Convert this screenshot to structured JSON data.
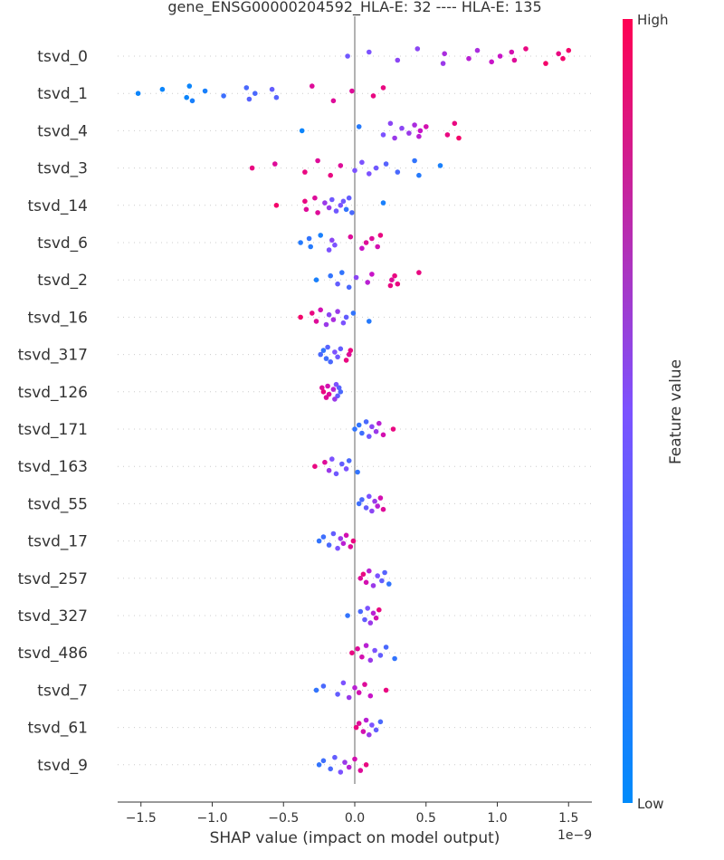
{
  "chart_data": {
    "type": "scatter",
    "title": "gene_ENSG00000204592_HLA-E: 32 ---- HLA-E: 135",
    "xlabel": "SHAP value (impact on model output)",
    "x_offset_label": "1e−9",
    "x_ticks": [
      -1.5,
      -1.0,
      -0.5,
      0.0,
      0.5,
      1.0,
      1.5
    ],
    "x_tick_labels": [
      "−1.5",
      "−1.0",
      "−0.5",
      "0.0",
      "0.5",
      "1.0",
      "1.5"
    ],
    "xlim": [
      -1.66,
      1.66
    ],
    "grid": false,
    "colorbar": {
      "label": "Feature value",
      "high_label": "High",
      "low_label": "Low",
      "low_color": "#008bfb",
      "high_color": "#ff0052"
    },
    "features": [
      {
        "name": "tsvd_0",
        "points": [
          [
            -0.05,
            0.45
          ],
          [
            0.1,
            0.5
          ],
          [
            0.3,
            0.55
          ],
          [
            0.44,
            0.55
          ],
          [
            0.62,
            0.6
          ],
          [
            0.63,
            0.65
          ],
          [
            0.8,
            0.7
          ],
          [
            0.86,
            0.65
          ],
          [
            0.96,
            0.75
          ],
          [
            1.02,
            0.75
          ],
          [
            1.1,
            0.8
          ],
          [
            1.12,
            0.85
          ],
          [
            1.2,
            0.9
          ],
          [
            1.34,
            0.95
          ],
          [
            1.43,
            0.9
          ],
          [
            1.46,
            0.95
          ],
          [
            1.5,
            0.95
          ]
        ]
      },
      {
        "name": "tsvd_1",
        "points": [
          [
            -1.52,
            0.05
          ],
          [
            -1.35,
            0.05
          ],
          [
            -1.18,
            0.05
          ],
          [
            -1.16,
            0.05
          ],
          [
            -1.14,
            0.1
          ],
          [
            -1.05,
            0.1
          ],
          [
            -0.92,
            0.25
          ],
          [
            -0.76,
            0.3
          ],
          [
            -0.74,
            0.35
          ],
          [
            -0.7,
            0.3
          ],
          [
            -0.58,
            0.4
          ],
          [
            -0.55,
            0.35
          ],
          [
            -0.3,
            0.85
          ],
          [
            -0.15,
            0.85
          ],
          [
            -0.02,
            0.85
          ],
          [
            0.13,
            0.9
          ],
          [
            0.2,
            0.9
          ]
        ]
      },
      {
        "name": "tsvd_4",
        "points": [
          [
            -0.37,
            0.05
          ],
          [
            0.03,
            0.15
          ],
          [
            0.2,
            0.5
          ],
          [
            0.25,
            0.55
          ],
          [
            0.28,
            0.6
          ],
          [
            0.33,
            0.55
          ],
          [
            0.38,
            0.6
          ],
          [
            0.42,
            0.65
          ],
          [
            0.45,
            0.7
          ],
          [
            0.46,
            0.75
          ],
          [
            0.5,
            0.8
          ],
          [
            0.65,
            0.9
          ],
          [
            0.7,
            0.9
          ],
          [
            0.73,
            0.95
          ]
        ]
      },
      {
        "name": "tsvd_3",
        "points": [
          [
            -0.72,
            0.9
          ],
          [
            -0.56,
            0.85
          ],
          [
            -0.35,
            0.9
          ],
          [
            -0.26,
            0.85
          ],
          [
            -0.17,
            0.9
          ],
          [
            -0.1,
            0.85
          ],
          [
            0.0,
            0.5
          ],
          [
            0.05,
            0.5
          ],
          [
            0.1,
            0.5
          ],
          [
            0.15,
            0.45
          ],
          [
            0.22,
            0.35
          ],
          [
            0.3,
            0.3
          ],
          [
            0.42,
            0.2
          ],
          [
            0.45,
            0.15
          ],
          [
            0.6,
            0.1
          ]
        ]
      },
      {
        "name": "tsvd_14",
        "points": [
          [
            -0.55,
            0.95
          ],
          [
            -0.35,
            0.9
          ],
          [
            -0.34,
            0.85
          ],
          [
            -0.28,
            0.85
          ],
          [
            -0.26,
            0.85
          ],
          [
            -0.21,
            0.6
          ],
          [
            -0.18,
            0.6
          ],
          [
            -0.16,
            0.45
          ],
          [
            -0.13,
            0.45
          ],
          [
            -0.1,
            0.5
          ],
          [
            -0.08,
            0.45
          ],
          [
            -0.06,
            0.2
          ],
          [
            -0.04,
            0.4
          ],
          [
            -0.02,
            0.3
          ],
          [
            0.2,
            0.1
          ]
        ]
      },
      {
        "name": "tsvd_6",
        "points": [
          [
            -0.38,
            0.15
          ],
          [
            -0.32,
            0.2
          ],
          [
            -0.31,
            0.15
          ],
          [
            -0.24,
            0.1
          ],
          [
            -0.18,
            0.5
          ],
          [
            -0.16,
            0.55
          ],
          [
            -0.14,
            0.5
          ],
          [
            -0.03,
            0.85
          ],
          [
            0.05,
            0.75
          ],
          [
            0.08,
            0.85
          ],
          [
            0.12,
            0.85
          ],
          [
            0.16,
            0.8
          ],
          [
            0.18,
            0.9
          ]
        ]
      },
      {
        "name": "tsvd_2",
        "points": [
          [
            -0.27,
            0.1
          ],
          [
            -0.17,
            0.2
          ],
          [
            -0.12,
            0.4
          ],
          [
            -0.09,
            0.2
          ],
          [
            -0.04,
            0.3
          ],
          [
            0.01,
            0.55
          ],
          [
            0.09,
            0.7
          ],
          [
            0.12,
            0.75
          ],
          [
            0.25,
            0.9
          ],
          [
            0.26,
            0.85
          ],
          [
            0.28,
            0.9
          ],
          [
            0.3,
            0.9
          ],
          [
            0.45,
            0.9
          ]
        ]
      },
      {
        "name": "tsvd_16",
        "points": [
          [
            -0.38,
            0.95
          ],
          [
            -0.3,
            0.9
          ],
          [
            -0.27,
            0.85
          ],
          [
            -0.24,
            0.8
          ],
          [
            -0.2,
            0.6
          ],
          [
            -0.18,
            0.55
          ],
          [
            -0.15,
            0.65
          ],
          [
            -0.12,
            0.6
          ],
          [
            -0.08,
            0.5
          ],
          [
            -0.06,
            0.4
          ],
          [
            -0.01,
            0.2
          ],
          [
            0.1,
            0.15
          ]
        ]
      },
      {
        "name": "tsvd_317",
        "points": [
          [
            -0.24,
            0.3
          ],
          [
            -0.22,
            0.2
          ],
          [
            -0.2,
            0.25
          ],
          [
            -0.19,
            0.35
          ],
          [
            -0.17,
            0.3
          ],
          [
            -0.14,
            0.5
          ],
          [
            -0.12,
            0.45
          ],
          [
            -0.1,
            0.4
          ],
          [
            -0.06,
            0.9
          ],
          [
            -0.04,
            0.85
          ],
          [
            -0.03,
            0.9
          ]
        ]
      },
      {
        "name": "tsvd_126",
        "points": [
          [
            -0.1,
            0.3
          ],
          [
            -0.11,
            0.35
          ],
          [
            -0.12,
            0.4
          ],
          [
            -0.13,
            0.5
          ],
          [
            -0.14,
            0.6
          ],
          [
            -0.15,
            0.7
          ],
          [
            -0.18,
            0.85
          ],
          [
            -0.19,
            0.8
          ],
          [
            -0.2,
            0.85
          ],
          [
            -0.22,
            0.9
          ],
          [
            -0.23,
            0.85
          ]
        ]
      },
      {
        "name": "tsvd_171",
        "points": [
          [
            0.0,
            0.2
          ],
          [
            0.03,
            0.2
          ],
          [
            0.05,
            0.25
          ],
          [
            0.08,
            0.3
          ],
          [
            0.1,
            0.45
          ],
          [
            0.12,
            0.55
          ],
          [
            0.15,
            0.6
          ],
          [
            0.17,
            0.7
          ],
          [
            0.2,
            0.8
          ],
          [
            0.27,
            0.9
          ]
        ]
      },
      {
        "name": "tsvd_163",
        "points": [
          [
            -0.28,
            0.9
          ],
          [
            -0.21,
            0.85
          ],
          [
            -0.18,
            0.6
          ],
          [
            -0.16,
            0.5
          ],
          [
            -0.13,
            0.45
          ],
          [
            -0.09,
            0.4
          ],
          [
            -0.06,
            0.5
          ],
          [
            -0.04,
            0.3
          ],
          [
            0.02,
            0.2
          ]
        ]
      },
      {
        "name": "tsvd_55",
        "points": [
          [
            0.03,
            0.25
          ],
          [
            0.05,
            0.3
          ],
          [
            0.08,
            0.4
          ],
          [
            0.1,
            0.5
          ],
          [
            0.12,
            0.55
          ],
          [
            0.14,
            0.6
          ],
          [
            0.16,
            0.7
          ],
          [
            0.18,
            0.8
          ],
          [
            0.2,
            0.85
          ]
        ]
      },
      {
        "name": "tsvd_17",
        "points": [
          [
            -0.25,
            0.2
          ],
          [
            -0.22,
            0.25
          ],
          [
            -0.18,
            0.3
          ],
          [
            -0.15,
            0.4
          ],
          [
            -0.12,
            0.5
          ],
          [
            -0.1,
            0.6
          ],
          [
            -0.08,
            0.7
          ],
          [
            -0.06,
            0.8
          ],
          [
            -0.03,
            0.85
          ],
          [
            -0.01,
            0.9
          ]
        ]
      },
      {
        "name": "tsvd_257",
        "points": [
          [
            0.04,
            0.85
          ],
          [
            0.06,
            0.9
          ],
          [
            0.08,
            0.8
          ],
          [
            0.1,
            0.7
          ],
          [
            0.13,
            0.6
          ],
          [
            0.16,
            0.5
          ],
          [
            0.19,
            0.4
          ],
          [
            0.21,
            0.35
          ],
          [
            0.24,
            0.2
          ]
        ]
      },
      {
        "name": "tsvd_327",
        "points": [
          [
            -0.05,
            0.2
          ],
          [
            0.04,
            0.3
          ],
          [
            0.07,
            0.4
          ],
          [
            0.09,
            0.5
          ],
          [
            0.11,
            0.6
          ],
          [
            0.13,
            0.7
          ],
          [
            0.15,
            0.8
          ],
          [
            0.17,
            0.9
          ]
        ]
      },
      {
        "name": "tsvd_486",
        "points": [
          [
            -0.02,
            0.9
          ],
          [
            0.02,
            0.85
          ],
          [
            0.05,
            0.8
          ],
          [
            0.08,
            0.7
          ],
          [
            0.11,
            0.6
          ],
          [
            0.14,
            0.5
          ],
          [
            0.18,
            0.4
          ],
          [
            0.22,
            0.3
          ],
          [
            0.28,
            0.2
          ]
        ]
      },
      {
        "name": "tsvd_7",
        "points": [
          [
            -0.27,
            0.2
          ],
          [
            -0.22,
            0.3
          ],
          [
            -0.12,
            0.4
          ],
          [
            -0.08,
            0.5
          ],
          [
            -0.04,
            0.6
          ],
          [
            0.0,
            0.7
          ],
          [
            0.03,
            0.8
          ],
          [
            0.07,
            0.85
          ],
          [
            0.11,
            0.75
          ],
          [
            0.22,
            0.9
          ]
        ]
      },
      {
        "name": "tsvd_61",
        "points": [
          [
            0.01,
            0.9
          ],
          [
            0.03,
            0.85
          ],
          [
            0.06,
            0.8
          ],
          [
            0.08,
            0.7
          ],
          [
            0.1,
            0.6
          ],
          [
            0.12,
            0.5
          ],
          [
            0.15,
            0.4
          ],
          [
            0.18,
            0.3
          ]
        ]
      },
      {
        "name": "tsvd_9",
        "points": [
          [
            -0.25,
            0.2
          ],
          [
            -0.22,
            0.25
          ],
          [
            -0.17,
            0.3
          ],
          [
            -0.14,
            0.4
          ],
          [
            -0.1,
            0.5
          ],
          [
            -0.07,
            0.6
          ],
          [
            -0.04,
            0.7
          ],
          [
            0.0,
            0.8
          ],
          [
            0.04,
            0.85
          ],
          [
            0.08,
            0.9
          ]
        ]
      }
    ]
  }
}
